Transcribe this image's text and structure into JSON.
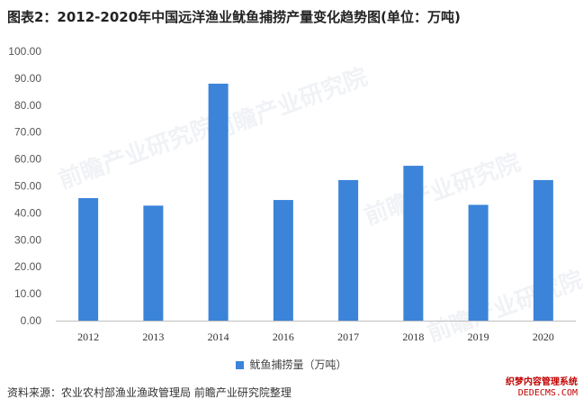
{
  "header": {
    "title": "图表2：2012-2020年中国远洋渔业鱿鱼捕捞产量变化趋势图(单位：万吨)"
  },
  "chart_data": {
    "type": "bar",
    "title": "图表2：2012-2020年中国远洋渔业鱿鱼捕捞产量变化趋势图(单位：万吨)",
    "categories": [
      "2012",
      "2013",
      "2014",
      "2016",
      "2017",
      "2018",
      "2019",
      "2020"
    ],
    "series": [
      {
        "name": "鱿鱼捕捞量（万吨）",
        "values": [
          45.5,
          42.7,
          88.0,
          44.8,
          52.2,
          57.5,
          43.0,
          52.2
        ]
      }
    ],
    "ylim": [
      0,
      100
    ],
    "yticks": [
      "0.00",
      "10.00",
      "20.00",
      "30.00",
      "40.00",
      "50.00",
      "60.00",
      "70.00",
      "80.00",
      "90.00",
      "100.00"
    ],
    "grid": false,
    "legend": "bottom",
    "bar_color": "#3b84d9"
  },
  "footer": {
    "source": "资料来源：农业农村部渔业渔政管理局 前瞻产业研究院整理"
  },
  "watermark": {
    "text": "前瞻产业研究院"
  },
  "badge": {
    "line1": "织梦内容管理系统",
    "line2": "DEDECMS.COM"
  }
}
